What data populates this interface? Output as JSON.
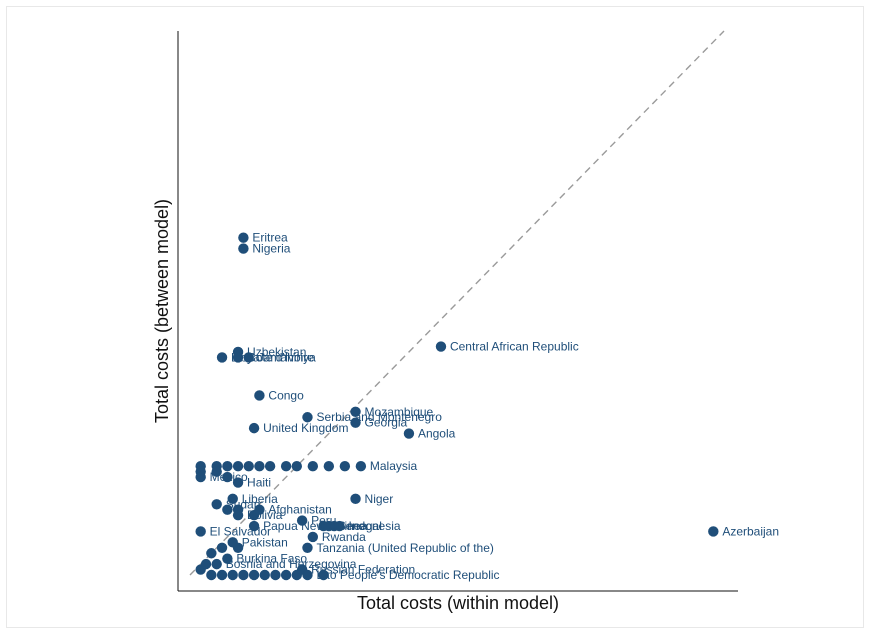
{
  "chart_data": {
    "type": "scatter",
    "xlabel": "Total costs (within model)",
    "ylabel": "Total costs (between model)",
    "reference_line": "y = x (dashed)",
    "grid": false,
    "point_color": "#1f4e79",
    "reference_line_color": "#9a9a9a",
    "xlim": [
      0,
      1
    ],
    "ylim": [
      0,
      1
    ],
    "points": [
      {
        "label": "Eritrea",
        "x": 0.1,
        "y": 0.62
      },
      {
        "label": "Nigeria",
        "x": 0.1,
        "y": 0.6
      },
      {
        "label": "Uzbekistan",
        "x": 0.09,
        "y": 0.41
      },
      {
        "label": "Libya",
        "x": 0.06,
        "y": 0.4
      },
      {
        "label": "Cote d'Ivoire",
        "x": 0.09,
        "y": 0.4
      },
      {
        "label": "Jamahiriya",
        "x": 0.11,
        "y": 0.4
      },
      {
        "label": "Central African Republic",
        "x": 0.47,
        "y": 0.42
      },
      {
        "label": "Congo",
        "x": 0.13,
        "y": 0.33
      },
      {
        "label": "Mozambique",
        "x": 0.31,
        "y": 0.3
      },
      {
        "label": "Serbia and Montenegro",
        "x": 0.22,
        "y": 0.29
      },
      {
        "label": "Georgia",
        "x": 0.31,
        "y": 0.28
      },
      {
        "label": "United Kingdom",
        "x": 0.12,
        "y": 0.27
      },
      {
        "label": "Angola",
        "x": 0.41,
        "y": 0.26
      },
      {
        "label": "Malaysia",
        "x": 0.32,
        "y": 0.2
      },
      {
        "label": "Mexico",
        "x": 0.02,
        "y": 0.18
      },
      {
        "label": "Haiti",
        "x": 0.09,
        "y": 0.17
      },
      {
        "label": "Niger",
        "x": 0.31,
        "y": 0.14
      },
      {
        "label": "Liberia",
        "x": 0.08,
        "y": 0.14
      },
      {
        "label": "Sudan",
        "x": 0.05,
        "y": 0.13
      },
      {
        "label": "Afghanistan",
        "x": 0.13,
        "y": 0.12
      },
      {
        "label": "Peru",
        "x": 0.21,
        "y": 0.1
      },
      {
        "label": "Bolivia",
        "x": 0.09,
        "y": 0.11
      },
      {
        "label": "Senegal",
        "x": 0.26,
        "y": 0.09
      },
      {
        "label": "Indonesia",
        "x": 0.28,
        "y": 0.09
      },
      {
        "label": "Papua New Guinea",
        "x": 0.12,
        "y": 0.09
      },
      {
        "label": "El Salvador",
        "x": 0.02,
        "y": 0.08
      },
      {
        "label": "Azerbaijan",
        "x": 0.98,
        "y": 0.08
      },
      {
        "label": "Rwanda",
        "x": 0.23,
        "y": 0.07
      },
      {
        "label": "Pakistan",
        "x": 0.08,
        "y": 0.06
      },
      {
        "label": "Tanzania (United Republic of the)",
        "x": 0.22,
        "y": 0.05
      },
      {
        "label": "Burkina Faso",
        "x": 0.07,
        "y": 0.03
      },
      {
        "label": "Bosnia and Herzegovina",
        "x": 0.05,
        "y": 0.02
      },
      {
        "label": "Russian Federation",
        "x": 0.21,
        "y": 0.01
      },
      {
        "label": "Lao People's Democratic Republic",
        "x": 0.22,
        "y": 0.0
      }
    ],
    "unlabeled_points": [
      {
        "x": 0.02,
        "y": 0.2
      },
      {
        "x": 0.05,
        "y": 0.2
      },
      {
        "x": 0.07,
        "y": 0.2
      },
      {
        "x": 0.09,
        "y": 0.2
      },
      {
        "x": 0.11,
        "y": 0.2
      },
      {
        "x": 0.13,
        "y": 0.2
      },
      {
        "x": 0.15,
        "y": 0.2
      },
      {
        "x": 0.18,
        "y": 0.2
      },
      {
        "x": 0.2,
        "y": 0.2
      },
      {
        "x": 0.23,
        "y": 0.2
      },
      {
        "x": 0.26,
        "y": 0.2
      },
      {
        "x": 0.29,
        "y": 0.2
      },
      {
        "x": 0.02,
        "y": 0.19
      },
      {
        "x": 0.05,
        "y": 0.19
      },
      {
        "x": 0.07,
        "y": 0.18
      },
      {
        "x": 0.07,
        "y": 0.12
      },
      {
        "x": 0.09,
        "y": 0.12
      },
      {
        "x": 0.12,
        "y": 0.11
      },
      {
        "x": 0.25,
        "y": 0.09
      },
      {
        "x": 0.27,
        "y": 0.09
      },
      {
        "x": 0.06,
        "y": 0.05
      },
      {
        "x": 0.09,
        "y": 0.05
      },
      {
        "x": 0.04,
        "y": 0.04
      },
      {
        "x": 0.02,
        "y": 0.01
      },
      {
        "x": 0.03,
        "y": 0.02
      },
      {
        "x": 0.04,
        "y": 0.0
      },
      {
        "x": 0.06,
        "y": 0.0
      },
      {
        "x": 0.08,
        "y": 0.0
      },
      {
        "x": 0.1,
        "y": 0.0
      },
      {
        "x": 0.12,
        "y": 0.0
      },
      {
        "x": 0.14,
        "y": 0.0
      },
      {
        "x": 0.16,
        "y": 0.0
      },
      {
        "x": 0.18,
        "y": 0.0
      },
      {
        "x": 0.2,
        "y": 0.0
      },
      {
        "x": 0.25,
        "y": 0.0
      }
    ]
  }
}
